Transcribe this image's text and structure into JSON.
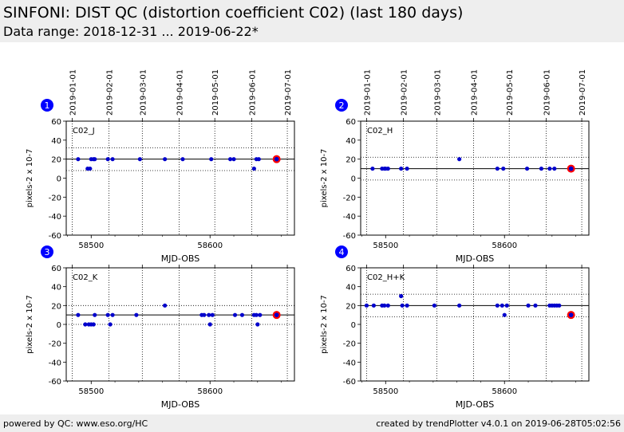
{
  "header": {
    "title": "SINFONI: DIST QC (distortion coefficient C02) (last 180 days)",
    "subtitle": "Data range: 2018-12-31 ... 2019-06-22*"
  },
  "footer": {
    "left": "powered by QC: www.eso.org/HC",
    "right": "created by trendPlotter v4.0.1 on 2019-06-28T05:02:56"
  },
  "colors": {
    "point": "#0000cc",
    "latest_ring": "#ff0000",
    "badge": "#0000ff",
    "header_bg": "#eeeeee"
  },
  "chart_data": [
    {
      "type": "scatter",
      "panel_number": "1",
      "label": "C02_J",
      "xlabel": "MJD-OBS",
      "ylabel": "pixels-2 x 10-7",
      "xlim": [
        58479,
        58671
      ],
      "ylim": [
        -60,
        60
      ],
      "yticks": [
        -60,
        -40,
        -20,
        0,
        20,
        40,
        60
      ],
      "xticks": [
        58500,
        58600
      ],
      "date_ticks": [
        {
          "label": "2019-01-01",
          "mjd": 58484
        },
        {
          "label": "2019-02-01",
          "mjd": 58515
        },
        {
          "label": "2019-03-01",
          "mjd": 58543
        },
        {
          "label": "2019-04-01",
          "mjd": 58574
        },
        {
          "label": "2019-05-01",
          "mjd": 58604
        },
        {
          "label": "2019-06-01",
          "mjd": 58635
        },
        {
          "label": "2019-07-01",
          "mjd": 58665
        }
      ],
      "mean": 20,
      "band": [
        8,
        32
      ],
      "points": [
        {
          "x": 58489,
          "y": 20
        },
        {
          "x": 58497,
          "y": 10
        },
        {
          "x": 58499,
          "y": 10
        },
        {
          "x": 58500,
          "y": 20
        },
        {
          "x": 58502,
          "y": 20
        },
        {
          "x": 58503,
          "y": 20
        },
        {
          "x": 58514,
          "y": 20
        },
        {
          "x": 58518,
          "y": 20
        },
        {
          "x": 58541,
          "y": 20
        },
        {
          "x": 58562,
          "y": 20
        },
        {
          "x": 58577,
          "y": 20
        },
        {
          "x": 58601,
          "y": 20
        },
        {
          "x": 58617,
          "y": 20
        },
        {
          "x": 58620,
          "y": 20
        },
        {
          "x": 58637,
          "y": 10
        },
        {
          "x": 58639,
          "y": 20
        },
        {
          "x": 58641,
          "y": 20
        }
      ],
      "latest": {
        "x": 58656,
        "y": 20
      }
    },
    {
      "type": "scatter",
      "panel_number": "2",
      "label": "C02_H",
      "xlabel": "MJD-OBS",
      "ylabel": "pixels-2 x 10-7",
      "xlim": [
        58479,
        58671
      ],
      "ylim": [
        -60,
        60
      ],
      "yticks": [
        -60,
        -40,
        -20,
        0,
        20,
        40,
        60
      ],
      "xticks": [
        58500,
        58600
      ],
      "date_ticks": [
        {
          "label": "2019-01-01",
          "mjd": 58484
        },
        {
          "label": "2019-02-01",
          "mjd": 58515
        },
        {
          "label": "2019-03-01",
          "mjd": 58543
        },
        {
          "label": "2019-04-01",
          "mjd": 58574
        },
        {
          "label": "2019-05-01",
          "mjd": 58604
        },
        {
          "label": "2019-06-01",
          "mjd": 58635
        },
        {
          "label": "2019-07-01",
          "mjd": 58665
        }
      ],
      "mean": 10,
      "band": [
        -2,
        22
      ],
      "points": [
        {
          "x": 58489,
          "y": 10
        },
        {
          "x": 58497,
          "y": 10
        },
        {
          "x": 58499,
          "y": 10
        },
        {
          "x": 58500,
          "y": 10
        },
        {
          "x": 58502,
          "y": 10
        },
        {
          "x": 58513,
          "y": 10
        },
        {
          "x": 58518,
          "y": 10
        },
        {
          "x": 58562,
          "y": 20
        },
        {
          "x": 58594,
          "y": 10
        },
        {
          "x": 58599,
          "y": 10
        },
        {
          "x": 58619,
          "y": 10
        },
        {
          "x": 58631,
          "y": 10
        },
        {
          "x": 58638,
          "y": 10
        },
        {
          "x": 58642,
          "y": 10
        }
      ],
      "latest": {
        "x": 58656,
        "y": 10
      }
    },
    {
      "type": "scatter",
      "panel_number": "3",
      "label": "C02_K",
      "xlabel": "MJD-OBS",
      "ylabel": "pixels-2 x 10-7",
      "xlim": [
        58479,
        58671
      ],
      "ylim": [
        -60,
        60
      ],
      "yticks": [
        -60,
        -40,
        -20,
        0,
        20,
        40,
        60
      ],
      "xticks": [
        58500,
        58600
      ],
      "date_ticks": [],
      "mean": 10,
      "band": [
        0,
        20
      ],
      "points": [
        {
          "x": 58489,
          "y": 10
        },
        {
          "x": 58495,
          "y": 0
        },
        {
          "x": 58498,
          "y": 0
        },
        {
          "x": 58500,
          "y": 0
        },
        {
          "x": 58502,
          "y": 0
        },
        {
          "x": 58503,
          "y": 10
        },
        {
          "x": 58514,
          "y": 10
        },
        {
          "x": 58516,
          "y": 0
        },
        {
          "x": 58518,
          "y": 10
        },
        {
          "x": 58538,
          "y": 10
        },
        {
          "x": 58562,
          "y": 20
        },
        {
          "x": 58593,
          "y": 10
        },
        {
          "x": 58595,
          "y": 10
        },
        {
          "x": 58599,
          "y": 10
        },
        {
          "x": 58600,
          "y": 0
        },
        {
          "x": 58602,
          "y": 10
        },
        {
          "x": 58621,
          "y": 10
        },
        {
          "x": 58627,
          "y": 10
        },
        {
          "x": 58637,
          "y": 10
        },
        {
          "x": 58639,
          "y": 10
        },
        {
          "x": 58640,
          "y": 0
        },
        {
          "x": 58642,
          "y": 10
        }
      ],
      "latest": {
        "x": 58656,
        "y": 10
      }
    },
    {
      "type": "scatter",
      "panel_number": "4",
      "label": "C02_H+K",
      "xlabel": "MJD-OBS",
      "ylabel": "pixels-2 x 10-7",
      "xlim": [
        58479,
        58671
      ],
      "ylim": [
        -60,
        60
      ],
      "yticks": [
        -60,
        -40,
        -20,
        0,
        20,
        40,
        60
      ],
      "xticks": [
        58500,
        58600
      ],
      "date_ticks": [],
      "mean": 20,
      "band": [
        8,
        32
      ],
      "points": [
        {
          "x": 58484,
          "y": 20
        },
        {
          "x": 58490,
          "y": 20
        },
        {
          "x": 58497,
          "y": 20
        },
        {
          "x": 58499,
          "y": 20
        },
        {
          "x": 58502,
          "y": 20
        },
        {
          "x": 58513,
          "y": 30
        },
        {
          "x": 58514,
          "y": 20
        },
        {
          "x": 58518,
          "y": 20
        },
        {
          "x": 58541,
          "y": 20
        },
        {
          "x": 58562,
          "y": 20
        },
        {
          "x": 58594,
          "y": 20
        },
        {
          "x": 58598,
          "y": 20
        },
        {
          "x": 58600,
          "y": 10
        },
        {
          "x": 58602,
          "y": 20
        },
        {
          "x": 58620,
          "y": 20
        },
        {
          "x": 58626,
          "y": 20
        },
        {
          "x": 58638,
          "y": 20
        },
        {
          "x": 58640,
          "y": 20
        },
        {
          "x": 58642,
          "y": 20
        },
        {
          "x": 58644,
          "y": 20
        },
        {
          "x": 58646,
          "y": 20
        }
      ],
      "latest": {
        "x": 58656,
        "y": 10
      }
    }
  ]
}
